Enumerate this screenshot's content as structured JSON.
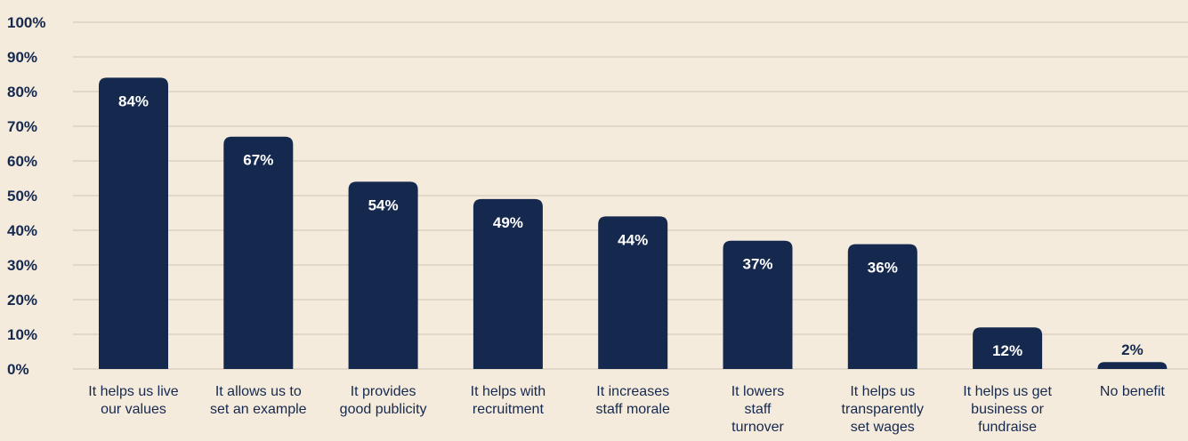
{
  "chart_data": {
    "type": "bar",
    "categories": [
      [
        "It helps us live",
        "our values"
      ],
      [
        "It allows us to",
        "set an example"
      ],
      [
        "It provides",
        "good publicity"
      ],
      [
        "It helps with",
        "recruitment"
      ],
      [
        "It increases",
        "staff morale"
      ],
      [
        "It lowers",
        "staff",
        "turnover"
      ],
      [
        "It helps us",
        "transparently",
        "set wages"
      ],
      [
        "It helps us get",
        "business or",
        "fundraise"
      ],
      [
        "No benefit"
      ]
    ],
    "values": [
      84,
      67,
      54,
      49,
      44,
      37,
      36,
      12,
      2
    ],
    "value_labels": [
      "84%",
      "67%",
      "54%",
      "49%",
      "44%",
      "37%",
      "36%",
      "12%",
      "2%"
    ],
    "ylim": [
      0,
      100
    ],
    "yticks": [
      0,
      10,
      20,
      30,
      40,
      50,
      60,
      70,
      80,
      90,
      100
    ],
    "ytick_labels": [
      "0%",
      "10%",
      "20%",
      "30%",
      "40%",
      "50%",
      "60%",
      "70%",
      "80%",
      "90%",
      "100%"
    ],
    "title": "",
    "xlabel": "",
    "ylabel": "",
    "grid": true,
    "legend": "none",
    "colors": {
      "background": "#f5ebdc",
      "bar": "#15294f",
      "bar_label_inside": "#ffffff",
      "bar_label_outside": "#15294f",
      "axis_text": "#15294f",
      "gridline": "#cfc6b8"
    }
  }
}
